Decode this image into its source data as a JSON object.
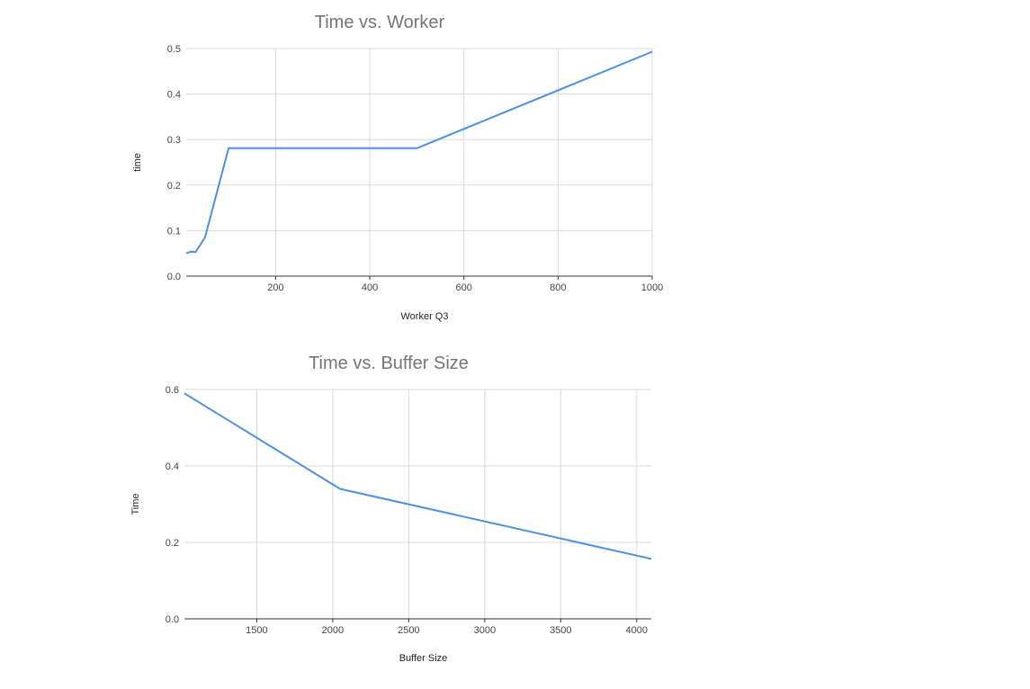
{
  "chart_data": [
    {
      "type": "line",
      "title": "Time vs. Worker",
      "xlabel": "Worker Q3",
      "ylabel": "time",
      "xlim": [
        10,
        1000
      ],
      "ylim": [
        0,
        0.5
      ],
      "xticks": [
        200,
        400,
        600,
        800,
        1000
      ],
      "yticks": [
        0.0,
        0.1,
        0.2,
        0.3,
        0.4,
        0.5
      ],
      "ytick_labels": [
        "0.0",
        "0.1",
        "0.2",
        "0.3",
        "0.4",
        "0.5"
      ],
      "grid": true,
      "series": [
        {
          "color": "#4a90e8",
          "x": [
            10,
            20,
            30,
            50,
            100,
            500,
            1000
          ],
          "y": [
            0.05,
            0.054,
            0.053,
            0.085,
            0.281,
            0.281,
            0.493
          ]
        }
      ]
    },
    {
      "type": "line",
      "title": "Time vs. Buffer Size",
      "xlabel": "Buffer Size",
      "ylabel": "Time",
      "xlim": [
        1024,
        4096
      ],
      "ylim": [
        0,
        0.6
      ],
      "xticks": [
        1500,
        2000,
        2500,
        3000,
        3500,
        4000
      ],
      "yticks": [
        0.0,
        0.2,
        0.4,
        0.6
      ],
      "ytick_labels": [
        "0.0",
        "0.2",
        "0.4",
        "0.6"
      ],
      "grid": true,
      "series": [
        {
          "color": "#4a90e8",
          "x": [
            1024,
            2048,
            4096
          ],
          "y": [
            0.59,
            0.34,
            0.157
          ]
        }
      ]
    }
  ]
}
